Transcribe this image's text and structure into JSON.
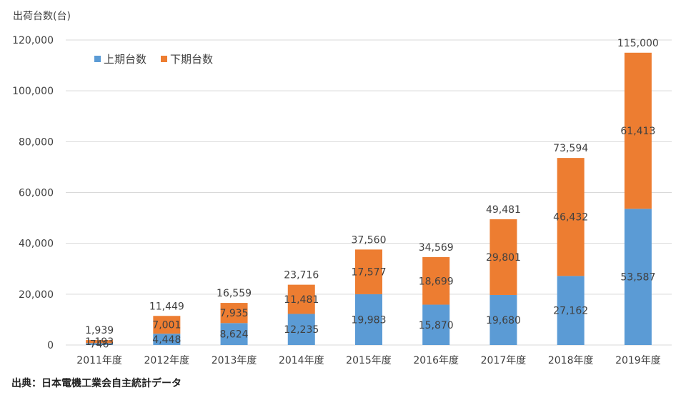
{
  "chart_data": {
    "type": "bar",
    "stacked": true,
    "y_axis_title": "出荷台数(台)",
    "source": "出典：日本電機工業会自主統計データ",
    "categories": [
      "2011年度",
      "2012年度",
      "2013年度",
      "2014年度",
      "2015年度",
      "2016年度",
      "2017年度",
      "2018年度",
      "2019年度"
    ],
    "series": [
      {
        "name": "上期台数",
        "color": "#5b9bd5",
        "values": [
          746,
          4448,
          8624,
          12235,
          19983,
          15870,
          19680,
          27162,
          53587
        ]
      },
      {
        "name": "下期台数",
        "color": "#ed7d31",
        "values": [
          1193,
          7001,
          7935,
          11481,
          17577,
          18699,
          29801,
          46432,
          61413
        ]
      }
    ],
    "totals": [
      1939,
      11449,
      16559,
      23716,
      37560,
      34569,
      49481,
      73594,
      115000
    ],
    "ylim": [
      0,
      120000
    ],
    "yticks": [
      0,
      20000,
      40000,
      60000,
      80000,
      100000,
      120000
    ],
    "grid": true,
    "legend_position": "top-left"
  }
}
